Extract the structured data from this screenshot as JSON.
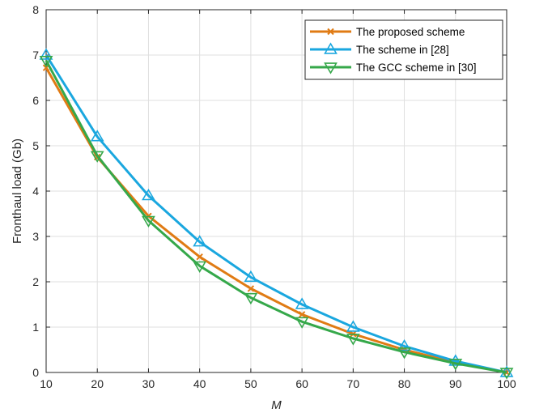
{
  "chart_data": {
    "type": "line",
    "xlabel": "M",
    "ylabel": "Fronthaul load (Gb)",
    "xlim": [
      10,
      100
    ],
    "ylim": [
      0,
      8
    ],
    "xticks": [
      10,
      20,
      30,
      40,
      50,
      60,
      70,
      80,
      90,
      100
    ],
    "yticks": [
      0,
      1,
      2,
      3,
      4,
      5,
      6,
      7,
      8
    ],
    "grid": true,
    "legend_position": "top-right",
    "x": [
      10,
      20,
      30,
      40,
      50,
      60,
      70,
      80,
      90,
      100
    ],
    "series": [
      {
        "name": "The proposed scheme",
        "color": "#D95319",
        "line_color": "#E07B14",
        "marker": "x",
        "values": [
          6.72,
          4.75,
          3.45,
          2.55,
          1.85,
          1.28,
          0.85,
          0.5,
          0.22,
          0.0
        ]
      },
      {
        "name": "The scheme in [28]",
        "color": "#0072BD",
        "line_color": "#1AA7DF",
        "marker": "triangle-up",
        "values": [
          7.0,
          5.2,
          3.9,
          2.88,
          2.1,
          1.5,
          1.0,
          0.58,
          0.25,
          0.0
        ]
      },
      {
        "name": "The GCC scheme in [30]",
        "color": "#2CA02C",
        "line_color": "#35A84A",
        "marker": "triangle-down",
        "values": [
          6.88,
          4.78,
          3.35,
          2.35,
          1.65,
          1.12,
          0.75,
          0.45,
          0.2,
          0.0
        ]
      }
    ]
  }
}
